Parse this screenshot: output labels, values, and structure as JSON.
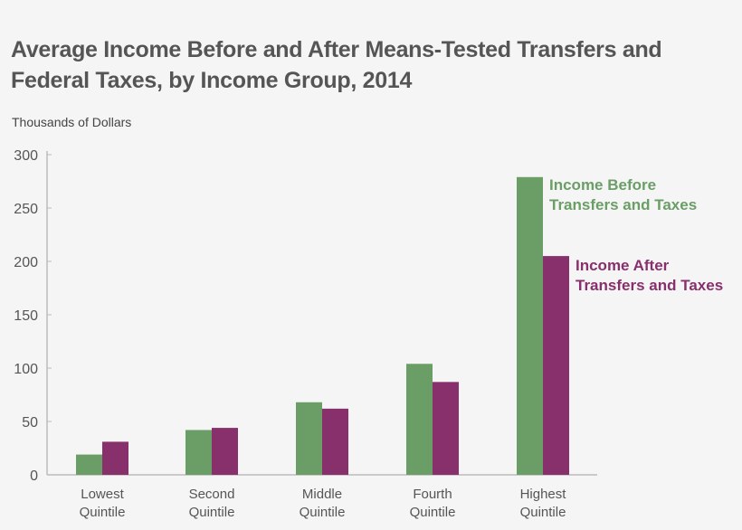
{
  "chart_data": {
    "type": "bar",
    "title": "Average Income Before and After Means-Tested Transfers and Federal Taxes, by Income Group, 2014",
    "ylabel": "Thousands of Dollars",
    "xlabel": "",
    "ylim": [
      0,
      300
    ],
    "yticks": [
      0,
      50,
      100,
      150,
      200,
      250,
      300
    ],
    "grid": false,
    "categories": [
      [
        "Lowest",
        "Quintile"
      ],
      [
        "Second",
        "Quintile"
      ],
      [
        "Middle",
        "Quintile"
      ],
      [
        "Fourth",
        "Quintile"
      ],
      [
        "Highest",
        "Quintile"
      ]
    ],
    "series": [
      {
        "name": [
          "Income Before",
          "Transfers and Taxes"
        ],
        "color": "#6a9e66",
        "values": [
          19,
          42,
          68,
          104,
          279
        ]
      },
      {
        "name": [
          "Income After",
          "Transfers and Taxes"
        ],
        "color": "#87306c",
        "values": [
          31,
          44,
          62,
          87,
          205
        ]
      }
    ],
    "legend": "inline labels beside highest-quintile bars"
  }
}
